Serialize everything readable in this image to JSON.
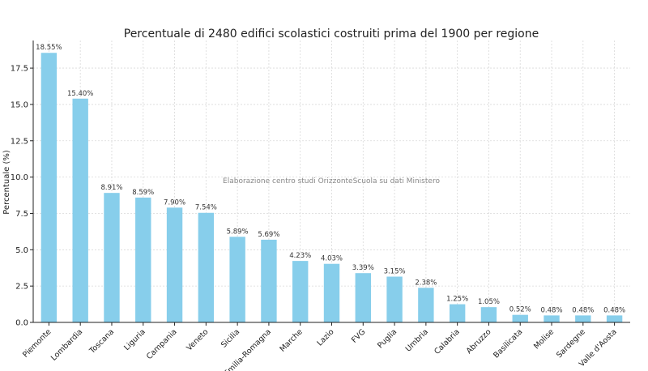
{
  "chart_data": {
    "type": "bar",
    "title": "Percentuale di 2480 edifici scolastici costruiti prima del 1900 per regione",
    "xlabel": "",
    "ylabel": "Percentuale (%)",
    "ylim": [
      0,
      19.4
    ],
    "yticks": [
      0.0,
      2.5,
      5.0,
      7.5,
      10.0,
      12.5,
      15.0,
      17.5
    ],
    "ytick_labels": [
      "0.0",
      "2.5",
      "5.0",
      "7.5",
      "10.0",
      "12.5",
      "15.0",
      "17.5"
    ],
    "grid": true,
    "bar_color": "#87CEEB",
    "annotation": "Elaborazione centro studi OrizzonteScuola su dati Ministero",
    "categories": [
      "Piemonte",
      "Lombardia",
      "Toscana",
      "Liguria",
      "Campania",
      "Veneto",
      "Sicilia",
      "Emilia-Romagna",
      "Marche",
      "Lazio",
      "FVG",
      "Puglia",
      "Umbria",
      "Calabria",
      "Abruzzo",
      "Basilicata",
      "Molise",
      "Sardegne",
      "Valle d'Aosta"
    ],
    "values": [
      18.55,
      15.4,
      8.91,
      8.59,
      7.9,
      7.54,
      5.89,
      5.69,
      4.23,
      4.03,
      3.39,
      3.15,
      2.38,
      1.25,
      1.05,
      0.52,
      0.48,
      0.48,
      0.48
    ],
    "data_labels": [
      "18.55%",
      "15.40%",
      "8.91%",
      "8.59%",
      "7.90%",
      "7.54%",
      "5.89%",
      "5.69%",
      "4.23%",
      "4.03%",
      "3.39%",
      "3.15%",
      "2.38%",
      "1.25%",
      "1.05%",
      "0.52%",
      "0.48%",
      "0.48%",
      "0.48%"
    ]
  }
}
